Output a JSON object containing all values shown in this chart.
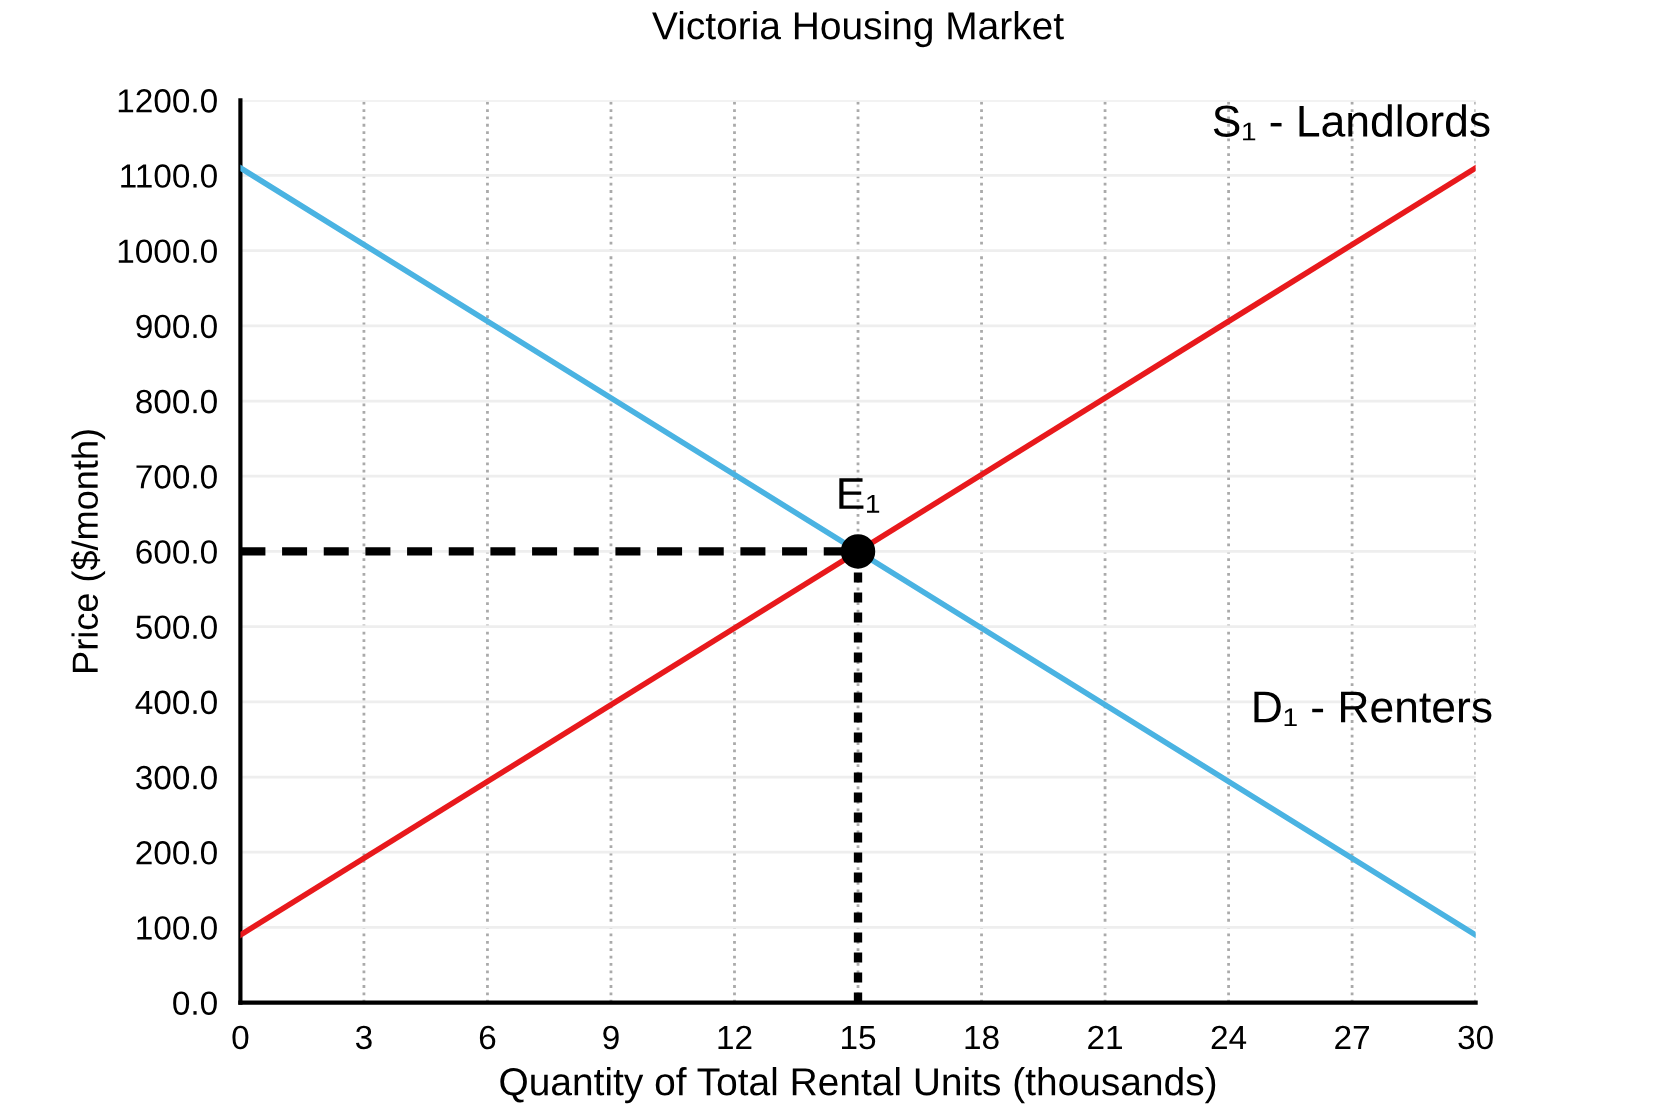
{
  "chart_data": {
    "type": "line",
    "title": "Victoria Housing Market",
    "xlabel": "Quantity of Total Rental Units (thousands)",
    "ylabel": "Price ($/month)",
    "series": [
      {
        "color": "#e8191c",
        "x": [
          0,
          30
        ],
        "values": [
          90,
          1110
        ]
      },
      {
        "color": "#4ab3e2",
        "x": [
          0,
          30
        ],
        "values": [
          1110,
          90
        ]
      },
      {
        "color": "#000000",
        "x": [
          0,
          15
        ],
        "values": [
          600,
          600
        ],
        "line_style": "dashed"
      },
      {
        "color": "#000000",
        "x": [
          15,
          15
        ],
        "values": [
          0,
          600
        ],
        "line_style": "dotted"
      },
      {
        "type": "scatter",
        "color": "#000000",
        "x": [
          15
        ],
        "values": [
          600
        ],
        "marker": "circle"
      }
    ],
    "annotations": [
      {
        "text": "S₁ - Landlords",
        "x": 30,
        "y": 1110
      },
      {
        "text": "D₁ - Renters",
        "x": 24,
        "y": 294
      },
      {
        "text": "E₁",
        "x": 15,
        "y": 600
      }
    ],
    "xlim": [
      0,
      30
    ],
    "ylim": [
      0,
      1200
    ],
    "xticks": [
      0,
      3,
      6,
      9,
      12,
      15,
      18,
      21,
      24,
      27,
      30
    ],
    "yticks": [
      {
        "value": 0,
        "label": "0.0"
      },
      {
        "value": 100,
        "label": "100.0"
      },
      {
        "value": 200,
        "label": "200.0"
      },
      {
        "value": 300,
        "label": "300.0"
      },
      {
        "value": 400,
        "label": "400.0"
      },
      {
        "value": 500,
        "label": "500.0"
      },
      {
        "value": 600,
        "label": "600.0"
      },
      {
        "value": 700,
        "label": "700.0"
      },
      {
        "value": 800,
        "label": "800.0"
      },
      {
        "value": 900,
        "label": "900.0"
      },
      {
        "value": 1000,
        "label": "1000.0"
      },
      {
        "value": 1100,
        "label": "1100.0"
      },
      {
        "value": 1200,
        "label": "1200.0"
      }
    ],
    "grid": true,
    "legend": false
  }
}
